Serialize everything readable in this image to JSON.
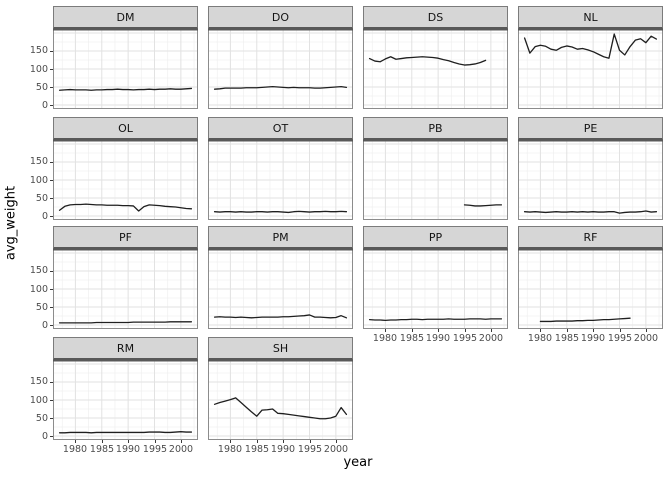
{
  "chart_data": {
    "type": "line",
    "title": "",
    "xlabel": "year",
    "ylabel": "avg_weight",
    "x_domain": [
      1975.75,
      2003.25
    ],
    "y_domain": [
      -11,
      211
    ],
    "x_ticks": [
      1980,
      1985,
      1990,
      1995,
      2000
    ],
    "x_tick_labels": [
      "1980",
      "1985",
      "1990",
      "1995",
      "2000"
    ],
    "x_minor_ticks": [
      1977.5,
      1982.5,
      1987.5,
      1992.5,
      1997.5,
      2002.5
    ],
    "y_ticks": [
      0,
      50,
      100,
      150
    ],
    "y_tick_labels": [
      "0",
      "50",
      "100",
      "150"
    ],
    "y_major_gridlines": [
      0,
      50,
      100,
      150,
      200
    ],
    "y_minor_gridlines": [
      25,
      75,
      125,
      175
    ],
    "grid": "on",
    "legend": "none",
    "facet_columns": 4,
    "facets": [
      {
        "label": "DM",
        "start_year": 1977,
        "values": [
          41,
          42,
          43,
          42,
          42,
          42,
          41,
          42,
          42,
          43,
          43,
          44,
          43,
          43,
          42,
          43,
          43,
          44,
          43,
          44,
          44,
          45,
          44,
          44,
          45,
          46
        ]
      },
      {
        "label": "DO",
        "start_year": 1977,
        "values": [
          44,
          45,
          47,
          47,
          47,
          47,
          48,
          48,
          48,
          49,
          50,
          51,
          50,
          49,
          48,
          49,
          48,
          48,
          48,
          47,
          47,
          48,
          49,
          50,
          51,
          49
        ]
      },
      {
        "label": "DS",
        "start_year": 1977,
        "values": [
          129,
          122,
          120,
          128,
          134,
          127,
          129,
          131,
          132,
          133,
          134,
          133,
          132,
          130,
          126,
          123,
          118,
          114,
          111,
          112,
          114,
          118,
          124
        ]
      },
      {
        "label": "NL",
        "start_year": 1977,
        "values": [
          186,
          144,
          162,
          166,
          163,
          155,
          152,
          160,
          164,
          161,
          155,
          157,
          153,
          148,
          141,
          134,
          130,
          197,
          152,
          139,
          162,
          180,
          184,
          173,
          191,
          183
        ]
      },
      {
        "label": "OL",
        "start_year": 1977,
        "values": [
          16,
          27,
          31,
          32,
          32,
          33,
          32,
          31,
          31,
          30,
          30,
          30,
          29,
          29,
          28,
          14,
          26,
          31,
          30,
          29,
          27,
          26,
          25,
          23,
          21,
          20
        ]
      },
      {
        "label": "OT",
        "start_year": 1977,
        "values": [
          12,
          11,
          12,
          12,
          11,
          12,
          11,
          11,
          12,
          12,
          11,
          12,
          12,
          11,
          10,
          12,
          13,
          12,
          11,
          12,
          12,
          13,
          12,
          12,
          13,
          12
        ]
      },
      {
        "label": "PB",
        "start_year": 1995,
        "values": [
          31,
          30,
          28,
          28,
          29,
          30,
          31,
          31
        ]
      },
      {
        "label": "PE",
        "start_year": 1977,
        "values": [
          12,
          11,
          12,
          11,
          10,
          11,
          12,
          11,
          11,
          12,
          11,
          12,
          11,
          12,
          11,
          11,
          12,
          12,
          8,
          10,
          11,
          11,
          12,
          14,
          11,
          12
        ]
      },
      {
        "label": "PF",
        "start_year": 1977,
        "values": [
          6,
          6,
          6,
          6,
          6,
          6,
          6,
          7,
          7,
          7,
          7,
          7,
          7,
          7,
          8,
          8,
          8,
          8,
          8,
          8,
          8,
          9,
          9,
          9,
          9,
          9
        ]
      },
      {
        "label": "PM",
        "start_year": 1977,
        "values": [
          22,
          23,
          22,
          22,
          21,
          22,
          21,
          20,
          21,
          22,
          22,
          22,
          22,
          23,
          23,
          24,
          25,
          26,
          28,
          22,
          22,
          21,
          20,
          21,
          26,
          20
        ]
      },
      {
        "label": "PP",
        "start_year": 1977,
        "values": [
          15,
          14,
          14,
          13,
          14,
          14,
          15,
          15,
          16,
          16,
          15,
          16,
          16,
          16,
          16,
          17,
          16,
          16,
          16,
          17,
          17,
          17,
          16,
          17,
          17,
          17
        ]
      },
      {
        "label": "RF",
        "start_year": 1980,
        "values": [
          10,
          10,
          10,
          11,
          11,
          11,
          11,
          12,
          12,
          13,
          13,
          14,
          15,
          15,
          16,
          17,
          18,
          19
        ]
      },
      {
        "label": "RM",
        "start_year": 1977,
        "values": [
          9,
          9,
          10,
          10,
          10,
          10,
          9,
          10,
          10,
          10,
          10,
          10,
          10,
          10,
          10,
          10,
          10,
          11,
          11,
          11,
          10,
          10,
          11,
          12,
          11,
          11
        ]
      },
      {
        "label": "SH",
        "start_year": 1977,
        "values": [
          88,
          93,
          97,
          101,
          106,
          93,
          80,
          67,
          55,
          72,
          73,
          75,
          63,
          62,
          60,
          58,
          56,
          54,
          52,
          50,
          48,
          48,
          50,
          55,
          79,
          60
        ]
      }
    ],
    "colors": {
      "line": "#1f1f1f",
      "strip_fill": "#d6d6d6",
      "strip_border": "#7b7b7b",
      "panel_border": "#8c8c8c",
      "panel_border_top": "#595959",
      "grid_major": "#e2e2e2",
      "grid_minor": "#f0f0f0",
      "tick_label": "#4d4d4d",
      "axis_title": "#000000",
      "background": "#ffffff"
    }
  }
}
